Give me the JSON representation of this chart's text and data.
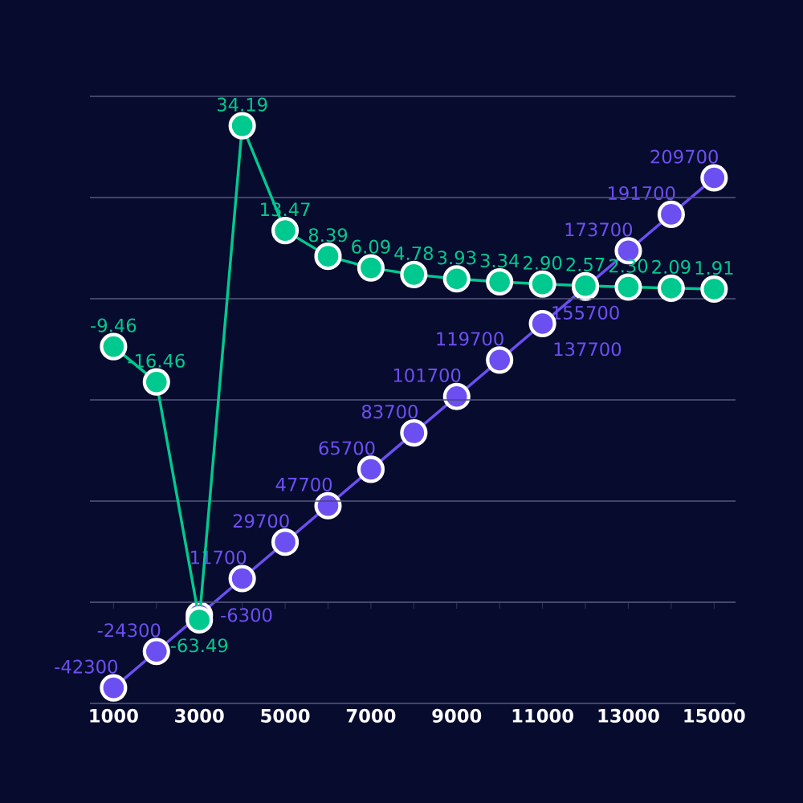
{
  "chart_data": {
    "type": "line",
    "categories": [
      "1000",
      null,
      "3000",
      null,
      "5000",
      null,
      "7000",
      null,
      "9000",
      null,
      "11000",
      null,
      "13000",
      null,
      "15000"
    ],
    "series": [
      {
        "color": "#6c4ff0",
        "values": [
          -42300,
          -24300,
          -6300,
          11700,
          29700,
          47700,
          65700,
          83700,
          101700,
          119700,
          137700,
          155700,
          173700,
          191700,
          209700
        ],
        "value_labels": [
          "-42300",
          "-24300",
          "-6300",
          "11700",
          "29700",
          "47700",
          "65700",
          "83700",
          "101700",
          "119700",
          "137700",
          "155700",
          "173700",
          "191700",
          "209700"
        ]
      },
      {
        "color": "#00c98f",
        "axis": "y2",
        "values": [
          -9.46,
          -16.46,
          -63.49,
          34.19,
          13.47,
          8.39,
          6.09,
          4.78,
          3.93,
          3.34,
          2.9,
          2.57,
          2.3,
          2.09,
          1.91
        ],
        "value_labels": [
          "-9.46",
          "-16.46",
          "-63.49",
          "34.19",
          "13.47",
          "8.39",
          "6.09",
          "4.78",
          "3.93",
          "3.34",
          "2.90",
          "2.57",
          "2.30",
          "2.09",
          "1.91"
        ]
      }
    ],
    "ylim": [
      -50000,
      250000
    ],
    "yticks": [
      {
        "value": -50000,
        "label": null
      },
      {
        "value": 0,
        "label": null
      },
      {
        "value": 50000,
        "label": null
      },
      {
        "value": 100000,
        "label": null
      },
      {
        "value": 150000,
        "label": null
      },
      {
        "value": 200000,
        "label": null
      },
      {
        "value": 250000,
        "label": null
      }
    ],
    "y2lim": [
      -80,
      40
    ],
    "y2ticks": [
      {
        "value": -80,
        "label": null
      },
      {
        "value": -60,
        "label": null
      },
      {
        "value": -40,
        "label": null
      },
      {
        "value": -20,
        "label": null
      },
      {
        "value": 0,
        "label": null
      },
      {
        "value": 20,
        "label": null
      },
      {
        "value": 40,
        "label": null
      }
    ],
    "grid": "y",
    "marker": "circle",
    "line_style": "solid",
    "tick_labels": "x"
  }
}
